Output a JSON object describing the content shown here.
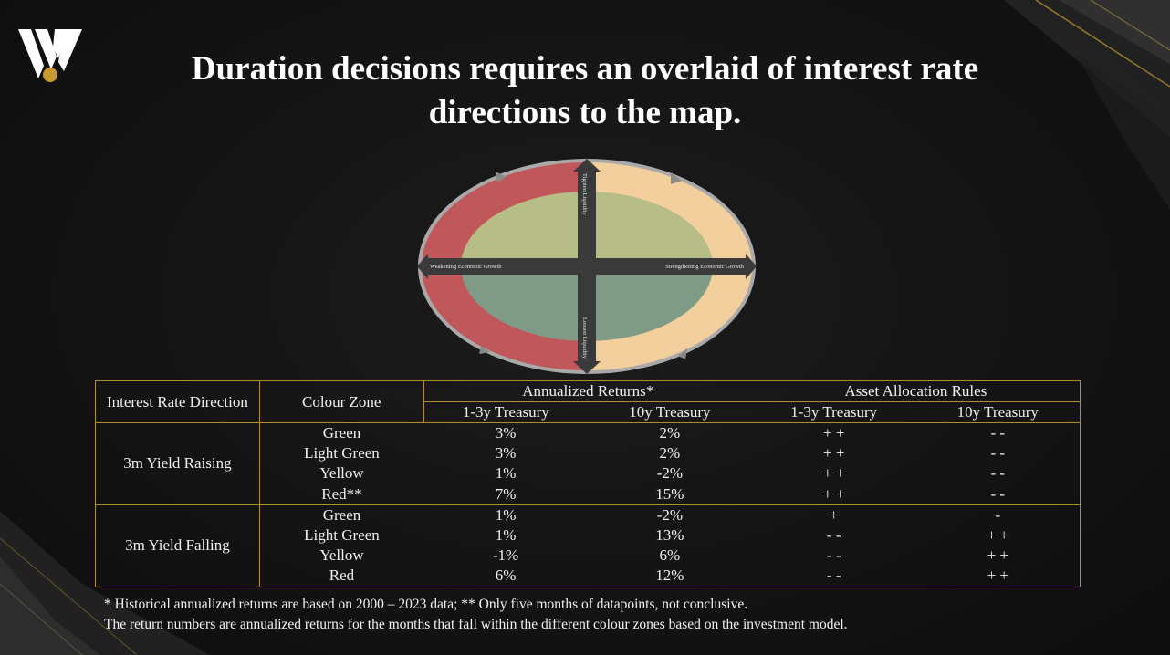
{
  "title": {
    "line1": "Duration decisions requires an overlaid of interest rate",
    "line2": "directions to the map."
  },
  "diagram": {
    "top_label": "Tighten Liquidity",
    "bottom_label": "Loosen Liquidity",
    "left_label": "Weakening Economic Growth",
    "right_label": "Strengthening Economic Growth"
  },
  "colors": {
    "red_zone": "#c0575a",
    "yellow_zone": "#f2cf9c",
    "light_green_zone": "#b7bd86",
    "green_zone": "#7f9a86",
    "border_gold": "#b08d2e",
    "axis": "#3a3a3a"
  },
  "table": {
    "headers": {
      "direction": "Interest Rate Direction",
      "zone": "Colour Zone",
      "returns_group": "Annualized Returns*",
      "rules_group": "Asset Allocation Rules",
      "returns_1_3y": "1-3y Treasury",
      "returns_10y": "10y Treasury",
      "rules_1_3y": "1-3y Treasury",
      "rules_10y": "10y Treasury"
    },
    "groups": [
      {
        "direction": "3m Yield Raising",
        "rows": [
          {
            "zone": "Green",
            "ret_short": "3%",
            "ret_long": "2%",
            "rule_short": "+ +",
            "rule_long": "- -"
          },
          {
            "zone": "Light Green",
            "ret_short": "3%",
            "ret_long": "2%",
            "rule_short": "+ +",
            "rule_long": "- -"
          },
          {
            "zone": "Yellow",
            "ret_short": "1%",
            "ret_long": "-2%",
            "rule_short": "+ +",
            "rule_long": "- -"
          },
          {
            "zone": "Red**",
            "ret_short": "7%",
            "ret_long": "15%",
            "rule_short": "+ +",
            "rule_long": "- -"
          }
        ]
      },
      {
        "direction": "3m Yield Falling",
        "rows": [
          {
            "zone": "Green",
            "ret_short": "1%",
            "ret_long": "-2%",
            "rule_short": "+",
            "rule_long": "-"
          },
          {
            "zone": "Light Green",
            "ret_short": "1%",
            "ret_long": "13%",
            "rule_short": "- -",
            "rule_long": "+ +"
          },
          {
            "zone": "Yellow",
            "ret_short": "-1%",
            "ret_long": "6%",
            "rule_short": "- -",
            "rule_long": "+ +"
          },
          {
            "zone": "Red",
            "ret_short": "6%",
            "ret_long": "12%",
            "rule_short": "- -",
            "rule_long": "+ +"
          }
        ]
      }
    ]
  },
  "notes": {
    "line1": "* Historical annualized returns are based on 2000 – 2023 data;  ** Only five months of datapoints, not conclusive.",
    "line2": "The return numbers are annualized returns for the months that fall within the different colour zones based on the investment model."
  }
}
